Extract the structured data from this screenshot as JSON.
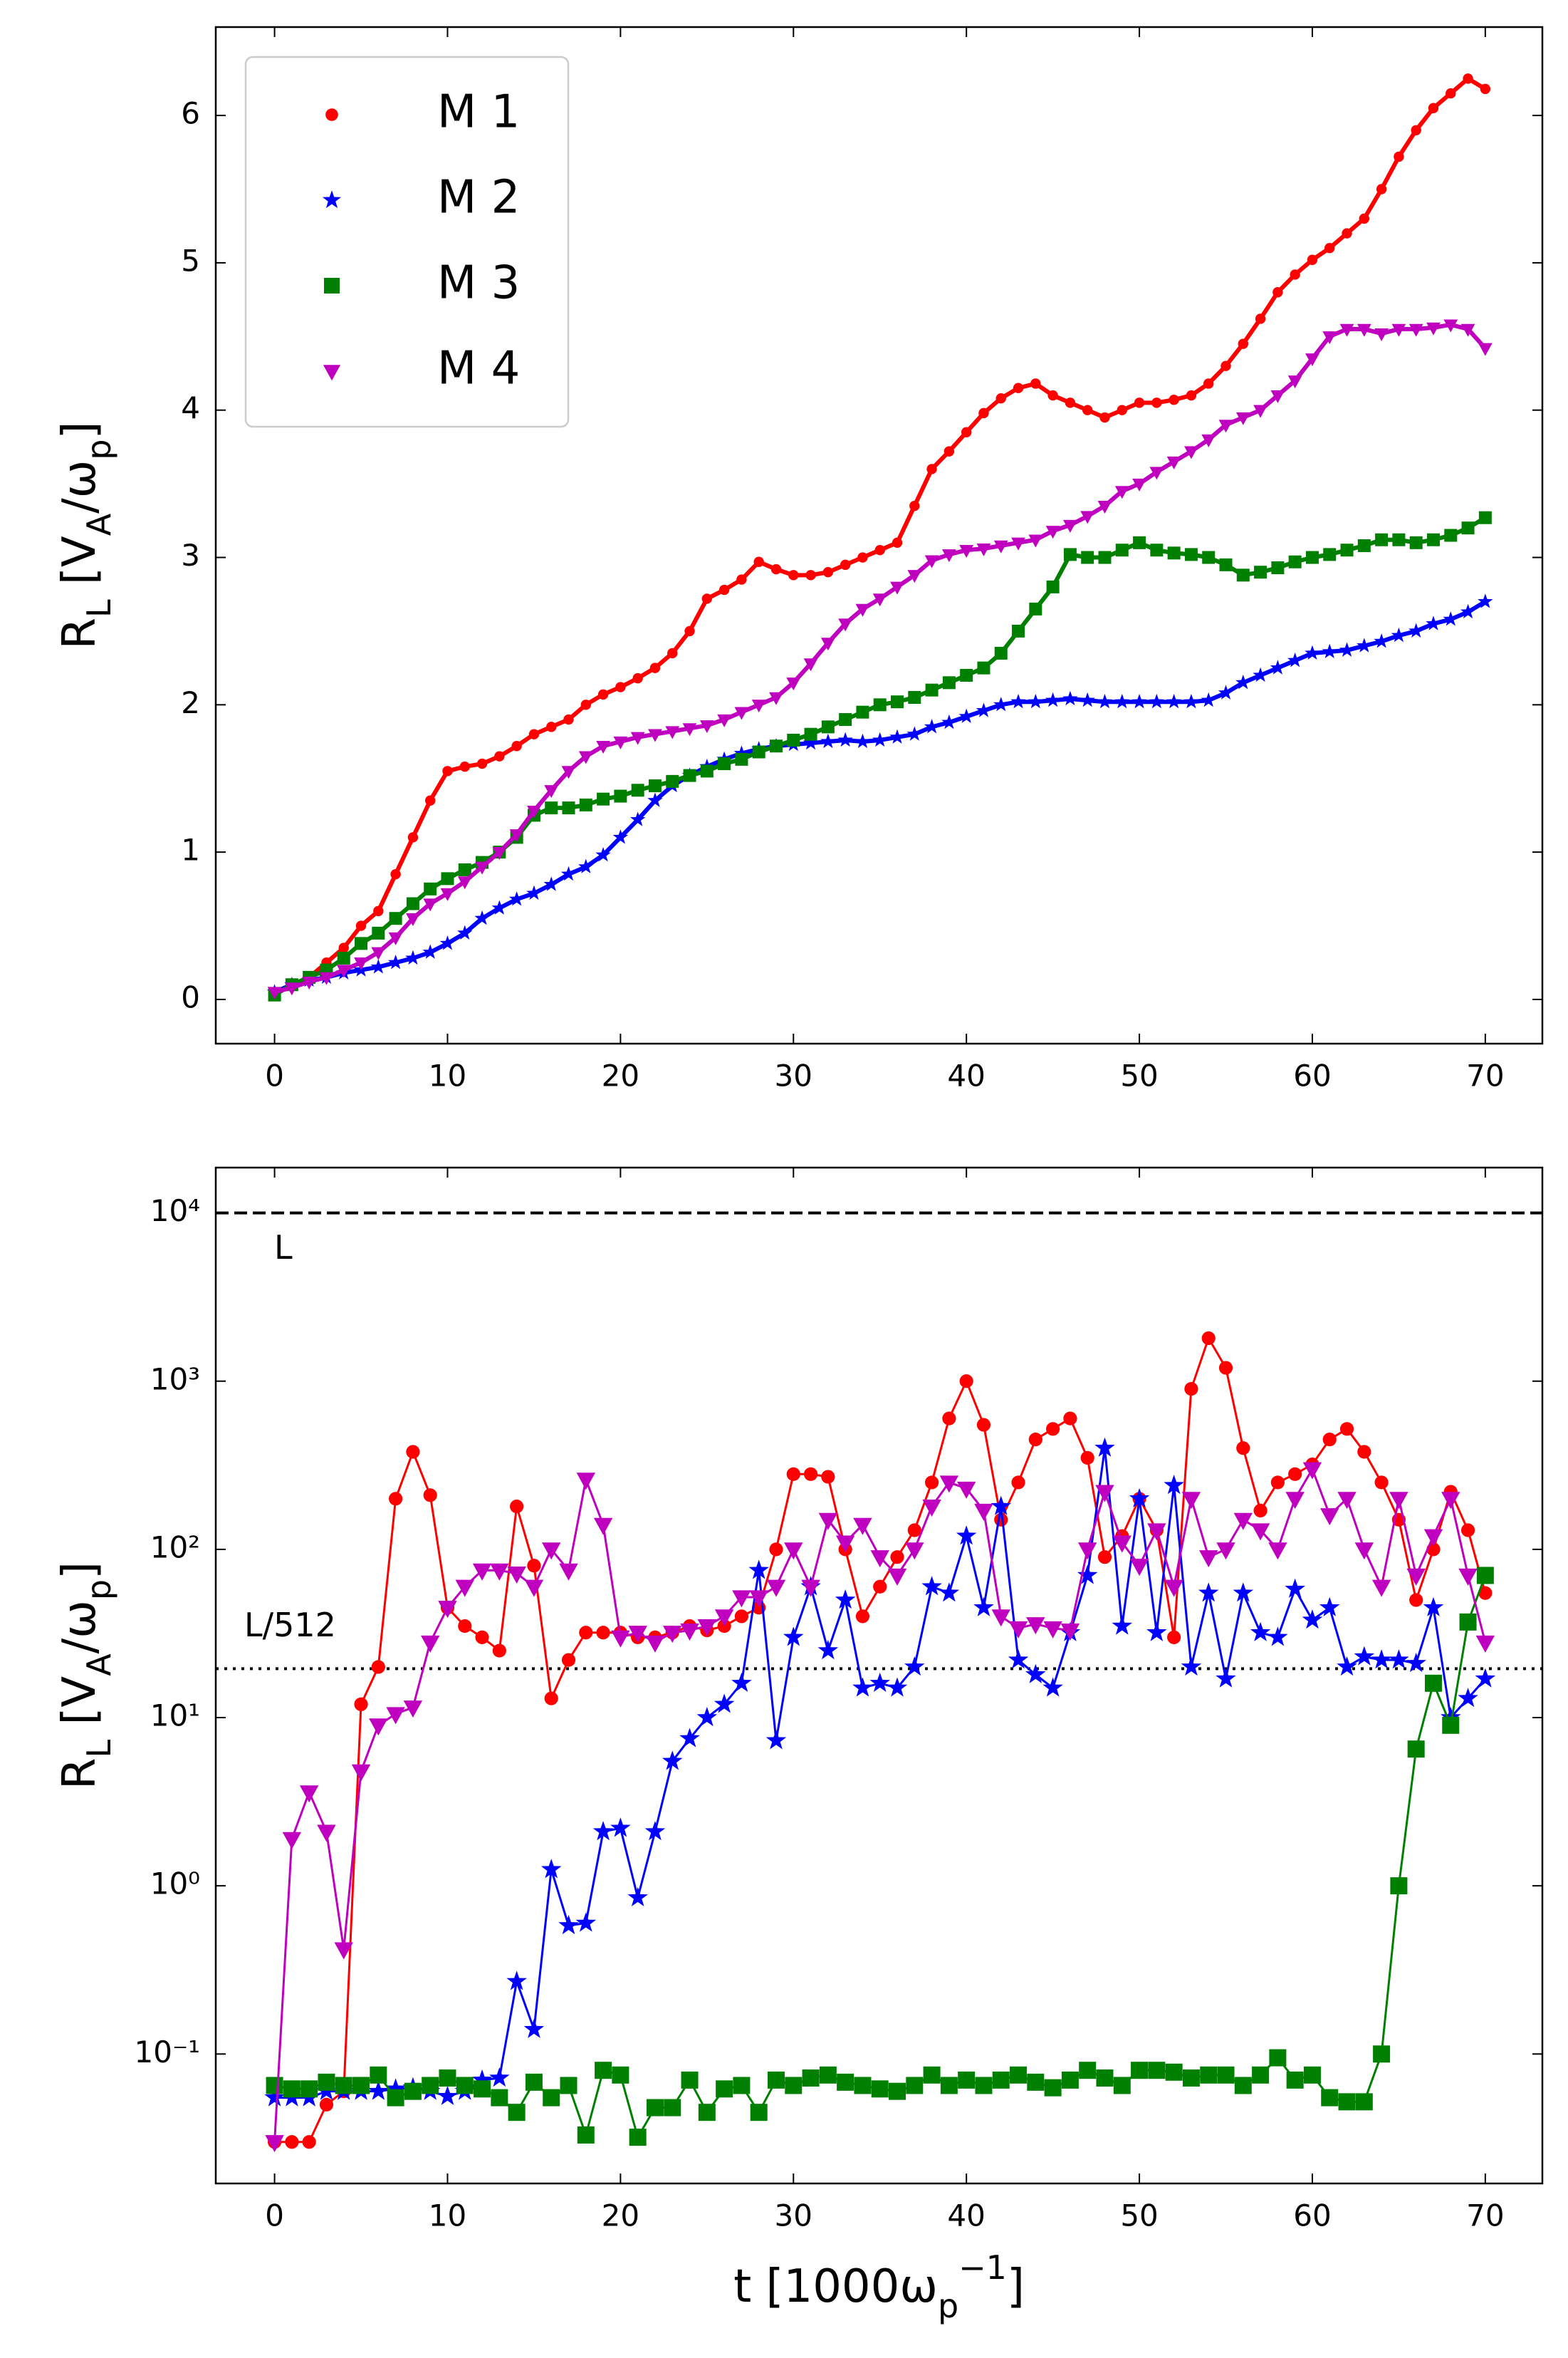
{
  "chart_data": [
    {
      "type": "line",
      "legend": "upper left",
      "x": [
        0,
        1,
        2,
        3,
        4,
        5,
        6,
        7,
        8,
        9,
        10,
        11,
        12,
        13,
        14,
        15,
        16,
        17,
        18,
        19,
        20,
        21,
        22,
        23,
        24,
        25,
        26,
        27,
        28,
        29,
        30,
        31,
        32,
        33,
        34,
        35,
        36,
        37,
        38,
        39,
        40,
        41,
        42,
        43,
        44,
        45,
        46,
        47,
        48,
        49,
        50,
        51,
        52,
        53,
        54,
        55,
        56,
        57,
        58,
        59,
        60,
        61,
        62,
        63,
        64,
        65,
        66,
        67,
        68,
        69,
        70
      ],
      "xlim": [
        -3.4,
        73.3
      ],
      "xticks": [
        0,
        10,
        20,
        30,
        40,
        50,
        60,
        70
      ],
      "ylim": [
        -0.3,
        6.6
      ],
      "yticks": [
        0,
        1,
        2,
        3,
        4,
        5,
        6
      ],
      "ylabel": [
        {
          "text": "R"
        },
        {
          "text": "L",
          "shift": "sub"
        },
        {
          "text": " [V"
        },
        {
          "text": "A",
          "shift": "sub"
        },
        {
          "text": "/ω"
        },
        {
          "text": "p",
          "shift": "sub"
        },
        {
          "text": "]"
        }
      ],
      "series": [
        {
          "name": "M 1",
          "color": "#ff0000",
          "marker": "circle",
          "values": [
            0.05,
            0.1,
            0.15,
            0.25,
            0.35,
            0.5,
            0.6,
            0.85,
            1.1,
            1.35,
            1.55,
            1.58,
            1.6,
            1.65,
            1.72,
            1.8,
            1.85,
            1.9,
            2.0,
            2.07,
            2.12,
            2.18,
            2.25,
            2.35,
            2.5,
            2.72,
            2.78,
            2.85,
            2.97,
            2.92,
            2.88,
            2.88,
            2.9,
            2.95,
            3.0,
            3.05,
            3.1,
            3.35,
            3.6,
            3.72,
            3.85,
            3.98,
            4.08,
            4.15,
            4.18,
            4.1,
            4.05,
            4.0,
            3.95,
            4.0,
            4.05,
            4.05,
            4.07,
            4.1,
            4.18,
            4.3,
            4.45,
            4.62,
            4.8,
            4.92,
            5.02,
            5.1,
            5.2,
            5.3,
            5.5,
            5.72,
            5.9,
            6.05,
            6.15,
            6.25,
            6.18
          ]
        },
        {
          "name": "M 2",
          "color": "#0000ff",
          "marker": "star",
          "values": [
            0.05,
            0.1,
            0.13,
            0.15,
            0.18,
            0.2,
            0.22,
            0.25,
            0.28,
            0.32,
            0.38,
            0.45,
            0.55,
            0.62,
            0.68,
            0.72,
            0.78,
            0.85,
            0.9,
            0.98,
            1.1,
            1.22,
            1.35,
            1.45,
            1.52,
            1.58,
            1.63,
            1.67,
            1.7,
            1.72,
            1.73,
            1.74,
            1.75,
            1.76,
            1.75,
            1.76,
            1.78,
            1.8,
            1.85,
            1.88,
            1.92,
            1.96,
            2.0,
            2.02,
            2.02,
            2.03,
            2.04,
            2.03,
            2.02,
            2.02,
            2.02,
            2.02,
            2.02,
            2.02,
            2.03,
            2.08,
            2.15,
            2.2,
            2.25,
            2.3,
            2.35,
            2.36,
            2.37,
            2.4,
            2.43,
            2.47,
            2.5,
            2.55,
            2.58,
            2.63,
            2.7
          ]
        },
        {
          "name": "M 3",
          "color": "#008000",
          "marker": "square",
          "values": [
            0.03,
            0.1,
            0.15,
            0.2,
            0.28,
            0.38,
            0.45,
            0.55,
            0.65,
            0.75,
            0.82,
            0.88,
            0.93,
            1.0,
            1.1,
            1.25,
            1.3,
            1.3,
            1.32,
            1.36,
            1.38,
            1.42,
            1.45,
            1.48,
            1.52,
            1.55,
            1.6,
            1.63,
            1.68,
            1.72,
            1.76,
            1.8,
            1.85,
            1.9,
            1.95,
            2.0,
            2.02,
            2.05,
            2.1,
            2.15,
            2.2,
            2.25,
            2.35,
            2.5,
            2.65,
            2.8,
            3.02,
            3.0,
            3.0,
            3.05,
            3.1,
            3.05,
            3.03,
            3.02,
            3.0,
            2.95,
            2.88,
            2.9,
            2.93,
            2.97,
            3.0,
            3.02,
            3.05,
            3.08,
            3.12,
            3.12,
            3.1,
            3.12,
            3.15,
            3.2,
            3.27
          ]
        },
        {
          "name": "M 4",
          "color": "#bf00bf",
          "marker": "triangle-down",
          "values": [
            0.05,
            0.08,
            0.12,
            0.15,
            0.2,
            0.25,
            0.32,
            0.42,
            0.55,
            0.65,
            0.72,
            0.8,
            0.9,
            1.0,
            1.12,
            1.28,
            1.42,
            1.55,
            1.65,
            1.72,
            1.75,
            1.78,
            1.8,
            1.82,
            1.84,
            1.86,
            1.9,
            1.95,
            2.0,
            2.05,
            2.15,
            2.28,
            2.42,
            2.55,
            2.65,
            2.72,
            2.8,
            2.88,
            2.98,
            3.02,
            3.05,
            3.06,
            3.08,
            3.1,
            3.12,
            3.18,
            3.22,
            3.28,
            3.35,
            3.45,
            3.5,
            3.58,
            3.65,
            3.72,
            3.8,
            3.9,
            3.95,
            4.0,
            4.1,
            4.2,
            4.35,
            4.5,
            4.55,
            4.55,
            4.52,
            4.55,
            4.55,
            4.56,
            4.58,
            4.55,
            4.42
          ]
        }
      ]
    },
    {
      "type": "line",
      "yscale": "log",
      "x": [
        0,
        1,
        2,
        3,
        4,
        5,
        6,
        7,
        8,
        9,
        10,
        11,
        12,
        13,
        14,
        15,
        16,
        17,
        18,
        19,
        20,
        21,
        22,
        23,
        24,
        25,
        26,
        27,
        28,
        29,
        30,
        31,
        32,
        33,
        34,
        35,
        36,
        37,
        38,
        39,
        40,
        41,
        42,
        43,
        44,
        45,
        46,
        47,
        48,
        49,
        50,
        51,
        52,
        53,
        54,
        55,
        56,
        57,
        58,
        59,
        60,
        61,
        62,
        63,
        64,
        65,
        66,
        67,
        68,
        69,
        70
      ],
      "xlim": [
        -3.4,
        73.3
      ],
      "xticks": [
        0,
        10,
        20,
        30,
        40,
        50,
        60,
        70
      ],
      "ylim": [
        0.017,
        18600
      ],
      "yticks": [
        {
          "value": 0.1,
          "label": "10⁻¹"
        },
        {
          "value": 1,
          "label": "10⁰"
        },
        {
          "value": 10,
          "label": "10¹"
        },
        {
          "value": 100,
          "label": "10²"
        },
        {
          "value": 1000,
          "label": "10³"
        },
        {
          "value": 10000,
          "label": "10⁴"
        }
      ],
      "xlabel": [
        {
          "text": "t [1000ω"
        },
        {
          "text": "p",
          "shift": "sub"
        },
        {
          "text": "−1",
          "shift": "super"
        },
        {
          "text": "]"
        }
      ],
      "ylabel": [
        {
          "text": "R"
        },
        {
          "text": "L",
          "shift": "sub"
        },
        {
          "text": " [V"
        },
        {
          "text": "A",
          "shift": "sub"
        },
        {
          "text": "/ω"
        },
        {
          "text": "p",
          "shift": "sub"
        },
        {
          "text": "]"
        }
      ],
      "hlines": [
        {
          "value": 10000,
          "label": "L",
          "style": "dashed"
        },
        {
          "value": 19.53,
          "label": "L/512",
          "style": "dotted"
        }
      ],
      "series": [
        {
          "color": "#ff0000",
          "marker": "circle",
          "values": [
            0.03,
            0.03,
            0.03,
            0.05,
            0.06,
            12,
            20,
            200,
            380,
            210,
            45,
            35,
            30,
            25,
            180,
            80,
            13,
            22,
            32,
            32,
            32,
            30,
            30,
            32,
            35,
            33,
            35,
            40,
            45,
            100,
            280,
            280,
            270,
            100,
            40,
            60,
            90,
            130,
            250,
            600,
            1000,
            550,
            150,
            250,
            450,
            520,
            600,
            350,
            90,
            120,
            200,
            130,
            30,
            900,
            1800,
            1200,
            400,
            170,
            250,
            280,
            320,
            450,
            520,
            380,
            250,
            150,
            50,
            100,
            220,
            130,
            55
          ]
        },
        {
          "color": "#0000ff",
          "marker": "star",
          "values": [
            0.055,
            0.055,
            0.055,
            0.06,
            0.06,
            0.06,
            0.06,
            0.062,
            0.063,
            0.06,
            0.056,
            0.06,
            0.07,
            0.072,
            0.27,
            0.14,
            1.25,
            0.58,
            0.6,
            2.1,
            2.2,
            0.85,
            2.1,
            5.5,
            7.5,
            10,
            12,
            16,
            75,
            7.3,
            30,
            60,
            25,
            50,
            15,
            16,
            15,
            20,
            60,
            55,
            120,
            45,
            180,
            22,
            18,
            15,
            32,
            70,
            400,
            35,
            200,
            32,
            240,
            20,
            55,
            17,
            55,
            32,
            30,
            58,
            38,
            45,
            20,
            23,
            22,
            22,
            21,
            45,
            10,
            13,
            17
          ]
        },
        {
          "color": "#008000",
          "marker": "square",
          "values": [
            0.065,
            0.062,
            0.062,
            0.068,
            0.065,
            0.065,
            0.075,
            0.055,
            0.06,
            0.065,
            0.072,
            0.065,
            0.062,
            0.055,
            0.045,
            0.068,
            0.055,
            0.065,
            0.033,
            0.08,
            0.075,
            0.032,
            0.048,
            0.048,
            0.07,
            0.045,
            0.062,
            0.065,
            0.045,
            0.07,
            0.065,
            0.072,
            0.075,
            0.068,
            0.065,
            0.062,
            0.06,
            0.065,
            0.075,
            0.065,
            0.07,
            0.065,
            0.07,
            0.075,
            0.068,
            0.063,
            0.07,
            0.08,
            0.072,
            0.065,
            0.08,
            0.08,
            0.078,
            0.072,
            0.075,
            0.075,
            0.065,
            0.075,
            0.095,
            0.07,
            0.075,
            0.055,
            0.052,
            0.052,
            0.1,
            1.0,
            6.5,
            16,
            9,
            37,
            70
          ]
        },
        {
          "color": "#bf00bf",
          "marker": "triangle-down",
          "values": [
            0.03,
            1.9,
            3.6,
            2.1,
            0.42,
            4.8,
            9,
            10.5,
            11.5,
            28,
            45,
            60,
            75,
            75,
            72,
            60,
            100,
            75,
            260,
            140,
            30,
            32,
            28,
            32,
            33,
            35,
            40,
            52,
            52,
            60,
            100,
            60,
            150,
            110,
            140,
            90,
            70,
            100,
            180,
            250,
            230,
            170,
            40,
            34,
            36,
            34,
            33,
            100,
            220,
            110,
            80,
            130,
            60,
            200,
            90,
            100,
            150,
            130,
            100,
            200,
            300,
            160,
            200,
            100,
            60,
            200,
            70,
            120,
            200,
            70,
            28
          ]
        }
      ]
    }
  ]
}
